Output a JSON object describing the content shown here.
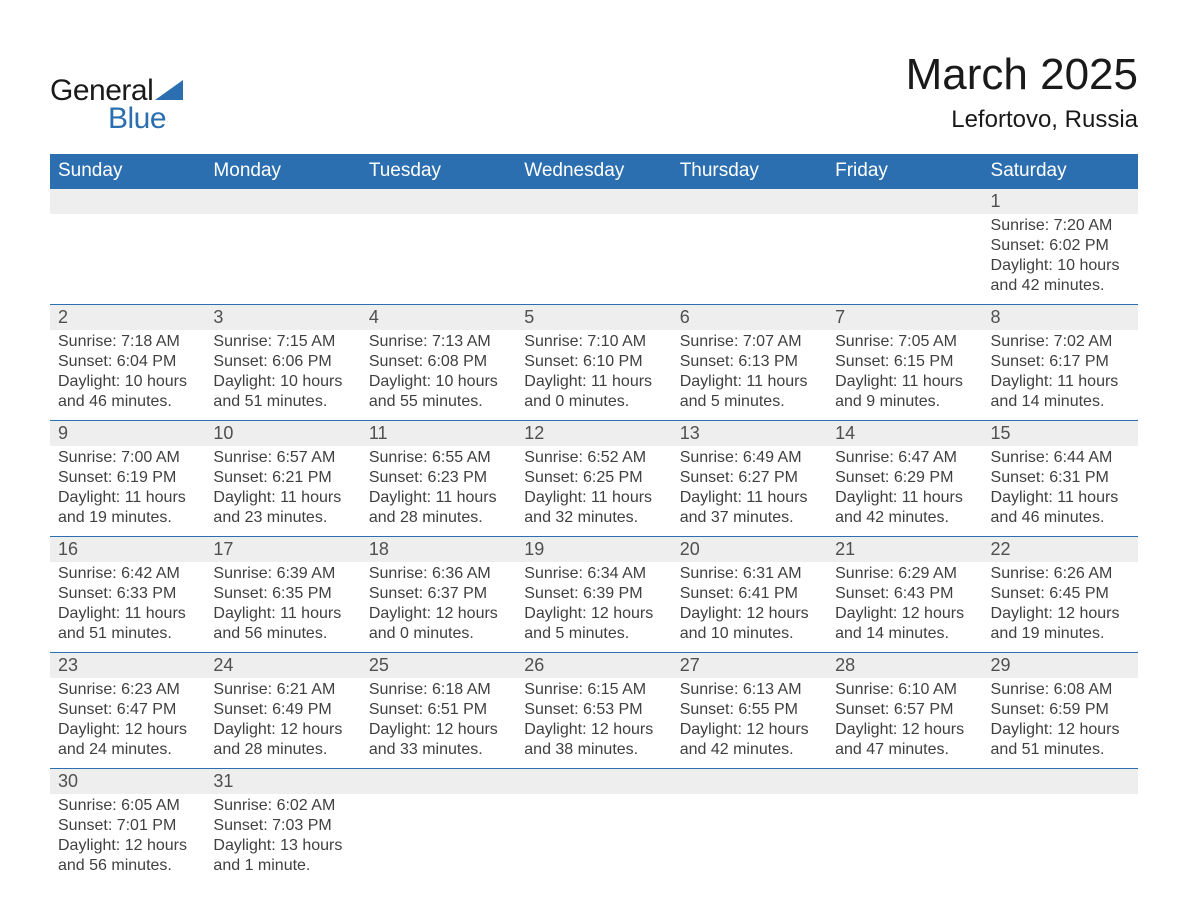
{
  "brand": {
    "text1": "General",
    "text2": "Blue",
    "icon_color": "#2b6fb0",
    "text1_color": "#1a1a1a",
    "text2_color": "#2b6fb0"
  },
  "title": "March 2025",
  "location": "Lefortovo, Russia",
  "colors": {
    "header_bg": "#2b6fb0",
    "header_text": "#ffffff",
    "daynum_bg": "#eeeeee",
    "row_border": "#2b6fb0",
    "body_text": "#404040",
    "page_bg": "#ffffff"
  },
  "typography": {
    "title_fontsize": 44,
    "location_fontsize": 24,
    "weekday_fontsize": 19,
    "daynum_fontsize": 18,
    "body_fontsize": 16
  },
  "layout": {
    "columns": 7,
    "rows": 6
  },
  "weekdays": [
    "Sunday",
    "Monday",
    "Tuesday",
    "Wednesday",
    "Thursday",
    "Friday",
    "Saturday"
  ],
  "weeks": [
    [
      null,
      null,
      null,
      null,
      null,
      null,
      {
        "day": "1",
        "sunrise": "Sunrise: 7:20 AM",
        "sunset": "Sunset: 6:02 PM",
        "daylight1": "Daylight: 10 hours",
        "daylight2": "and 42 minutes."
      }
    ],
    [
      {
        "day": "2",
        "sunrise": "Sunrise: 7:18 AM",
        "sunset": "Sunset: 6:04 PM",
        "daylight1": "Daylight: 10 hours",
        "daylight2": "and 46 minutes."
      },
      {
        "day": "3",
        "sunrise": "Sunrise: 7:15 AM",
        "sunset": "Sunset: 6:06 PM",
        "daylight1": "Daylight: 10 hours",
        "daylight2": "and 51 minutes."
      },
      {
        "day": "4",
        "sunrise": "Sunrise: 7:13 AM",
        "sunset": "Sunset: 6:08 PM",
        "daylight1": "Daylight: 10 hours",
        "daylight2": "and 55 minutes."
      },
      {
        "day": "5",
        "sunrise": "Sunrise: 7:10 AM",
        "sunset": "Sunset: 6:10 PM",
        "daylight1": "Daylight: 11 hours",
        "daylight2": "and 0 minutes."
      },
      {
        "day": "6",
        "sunrise": "Sunrise: 7:07 AM",
        "sunset": "Sunset: 6:13 PM",
        "daylight1": "Daylight: 11 hours",
        "daylight2": "and 5 minutes."
      },
      {
        "day": "7",
        "sunrise": "Sunrise: 7:05 AM",
        "sunset": "Sunset: 6:15 PM",
        "daylight1": "Daylight: 11 hours",
        "daylight2": "and 9 minutes."
      },
      {
        "day": "8",
        "sunrise": "Sunrise: 7:02 AM",
        "sunset": "Sunset: 6:17 PM",
        "daylight1": "Daylight: 11 hours",
        "daylight2": "and 14 minutes."
      }
    ],
    [
      {
        "day": "9",
        "sunrise": "Sunrise: 7:00 AM",
        "sunset": "Sunset: 6:19 PM",
        "daylight1": "Daylight: 11 hours",
        "daylight2": "and 19 minutes."
      },
      {
        "day": "10",
        "sunrise": "Sunrise: 6:57 AM",
        "sunset": "Sunset: 6:21 PM",
        "daylight1": "Daylight: 11 hours",
        "daylight2": "and 23 minutes."
      },
      {
        "day": "11",
        "sunrise": "Sunrise: 6:55 AM",
        "sunset": "Sunset: 6:23 PM",
        "daylight1": "Daylight: 11 hours",
        "daylight2": "and 28 minutes."
      },
      {
        "day": "12",
        "sunrise": "Sunrise: 6:52 AM",
        "sunset": "Sunset: 6:25 PM",
        "daylight1": "Daylight: 11 hours",
        "daylight2": "and 32 minutes."
      },
      {
        "day": "13",
        "sunrise": "Sunrise: 6:49 AM",
        "sunset": "Sunset: 6:27 PM",
        "daylight1": "Daylight: 11 hours",
        "daylight2": "and 37 minutes."
      },
      {
        "day": "14",
        "sunrise": "Sunrise: 6:47 AM",
        "sunset": "Sunset: 6:29 PM",
        "daylight1": "Daylight: 11 hours",
        "daylight2": "and 42 minutes."
      },
      {
        "day": "15",
        "sunrise": "Sunrise: 6:44 AM",
        "sunset": "Sunset: 6:31 PM",
        "daylight1": "Daylight: 11 hours",
        "daylight2": "and 46 minutes."
      }
    ],
    [
      {
        "day": "16",
        "sunrise": "Sunrise: 6:42 AM",
        "sunset": "Sunset: 6:33 PM",
        "daylight1": "Daylight: 11 hours",
        "daylight2": "and 51 minutes."
      },
      {
        "day": "17",
        "sunrise": "Sunrise: 6:39 AM",
        "sunset": "Sunset: 6:35 PM",
        "daylight1": "Daylight: 11 hours",
        "daylight2": "and 56 minutes."
      },
      {
        "day": "18",
        "sunrise": "Sunrise: 6:36 AM",
        "sunset": "Sunset: 6:37 PM",
        "daylight1": "Daylight: 12 hours",
        "daylight2": "and 0 minutes."
      },
      {
        "day": "19",
        "sunrise": "Sunrise: 6:34 AM",
        "sunset": "Sunset: 6:39 PM",
        "daylight1": "Daylight: 12 hours",
        "daylight2": "and 5 minutes."
      },
      {
        "day": "20",
        "sunrise": "Sunrise: 6:31 AM",
        "sunset": "Sunset: 6:41 PM",
        "daylight1": "Daylight: 12 hours",
        "daylight2": "and 10 minutes."
      },
      {
        "day": "21",
        "sunrise": "Sunrise: 6:29 AM",
        "sunset": "Sunset: 6:43 PM",
        "daylight1": "Daylight: 12 hours",
        "daylight2": "and 14 minutes."
      },
      {
        "day": "22",
        "sunrise": "Sunrise: 6:26 AM",
        "sunset": "Sunset: 6:45 PM",
        "daylight1": "Daylight: 12 hours",
        "daylight2": "and 19 minutes."
      }
    ],
    [
      {
        "day": "23",
        "sunrise": "Sunrise: 6:23 AM",
        "sunset": "Sunset: 6:47 PM",
        "daylight1": "Daylight: 12 hours",
        "daylight2": "and 24 minutes."
      },
      {
        "day": "24",
        "sunrise": "Sunrise: 6:21 AM",
        "sunset": "Sunset: 6:49 PM",
        "daylight1": "Daylight: 12 hours",
        "daylight2": "and 28 minutes."
      },
      {
        "day": "25",
        "sunrise": "Sunrise: 6:18 AM",
        "sunset": "Sunset: 6:51 PM",
        "daylight1": "Daylight: 12 hours",
        "daylight2": "and 33 minutes."
      },
      {
        "day": "26",
        "sunrise": "Sunrise: 6:15 AM",
        "sunset": "Sunset: 6:53 PM",
        "daylight1": "Daylight: 12 hours",
        "daylight2": "and 38 minutes."
      },
      {
        "day": "27",
        "sunrise": "Sunrise: 6:13 AM",
        "sunset": "Sunset: 6:55 PM",
        "daylight1": "Daylight: 12 hours",
        "daylight2": "and 42 minutes."
      },
      {
        "day": "28",
        "sunrise": "Sunrise: 6:10 AM",
        "sunset": "Sunset: 6:57 PM",
        "daylight1": "Daylight: 12 hours",
        "daylight2": "and 47 minutes."
      },
      {
        "day": "29",
        "sunrise": "Sunrise: 6:08 AM",
        "sunset": "Sunset: 6:59 PM",
        "daylight1": "Daylight: 12 hours",
        "daylight2": "and 51 minutes."
      }
    ],
    [
      {
        "day": "30",
        "sunrise": "Sunrise: 6:05 AM",
        "sunset": "Sunset: 7:01 PM",
        "daylight1": "Daylight: 12 hours",
        "daylight2": "and 56 minutes."
      },
      {
        "day": "31",
        "sunrise": "Sunrise: 6:02 AM",
        "sunset": "Sunset: 7:03 PM",
        "daylight1": "Daylight: 13 hours",
        "daylight2": "and 1 minute."
      },
      null,
      null,
      null,
      null,
      null
    ]
  ]
}
